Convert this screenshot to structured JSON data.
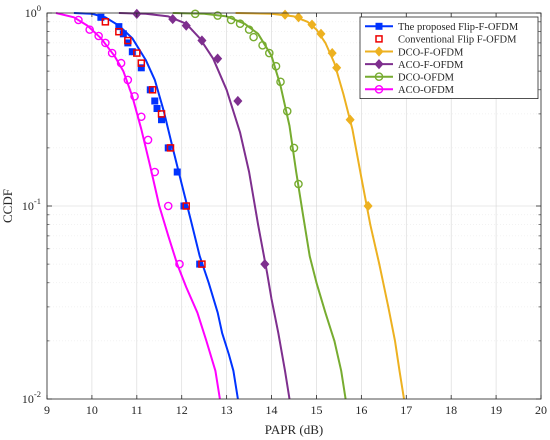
{
  "chart_data": {
    "type": "line",
    "title": "",
    "xlabel": "PAPR (dB)",
    "ylabel": "CCDF",
    "xlim": [
      9,
      20
    ],
    "ylim": [
      0.01,
      1
    ],
    "yscale": "log",
    "grid": true,
    "legend_position": "top-right",
    "x_ticks": [
      "9",
      "10",
      "11",
      "12",
      "13",
      "14",
      "15",
      "16",
      "17",
      "18",
      "19",
      "20"
    ],
    "y_ticks": [
      {
        "base": "10",
        "exp": "0"
      },
      {
        "base": "10",
        "exp": "-1"
      },
      {
        "base": "10",
        "exp": "-2"
      }
    ],
    "series": [
      {
        "name": "The proposed Flip-F-OFDM",
        "color": "#0033FF",
        "marker": "square-filled",
        "line": true,
        "points": [
          [
            9.6,
            1.0
          ],
          [
            10.0,
            0.99
          ],
          [
            10.3,
            0.95
          ],
          [
            10.6,
            0.86
          ],
          [
            10.9,
            0.74
          ],
          [
            11.2,
            0.57
          ],
          [
            11.4,
            0.45
          ],
          [
            11.6,
            0.31
          ],
          [
            11.8,
            0.2
          ],
          [
            12.0,
            0.13
          ],
          [
            12.2,
            0.085
          ],
          [
            12.4,
            0.055
          ],
          [
            12.6,
            0.04
          ],
          [
            12.8,
            0.028
          ],
          [
            12.9,
            0.022
          ],
          [
            13.05,
            0.017
          ],
          [
            13.15,
            0.014
          ],
          [
            13.25,
            0.01
          ]
        ],
        "markers": [
          [
            10.2,
            0.95
          ],
          [
            10.6,
            0.85
          ],
          [
            10.7,
            0.78
          ],
          [
            10.8,
            0.7
          ],
          [
            10.9,
            0.63
          ],
          [
            11.1,
            0.52
          ],
          [
            11.3,
            0.4
          ],
          [
            11.4,
            0.35
          ],
          [
            11.45,
            0.32
          ],
          [
            11.55,
            0.28
          ],
          [
            11.7,
            0.2
          ],
          [
            11.9,
            0.15
          ],
          [
            12.05,
            0.1
          ],
          [
            12.4,
            0.05
          ]
        ]
      },
      {
        "name": "Conventional Flip F-OFDM",
        "color": "#EE0000",
        "marker": "square-open",
        "line": false,
        "markers": [
          [
            10.3,
            0.9
          ],
          [
            10.6,
            0.8
          ],
          [
            10.8,
            0.72
          ],
          [
            11.0,
            0.62
          ],
          [
            11.1,
            0.55
          ],
          [
            11.35,
            0.4
          ],
          [
            11.55,
            0.3
          ],
          [
            11.75,
            0.2
          ],
          [
            12.1,
            0.1
          ],
          [
            12.45,
            0.05
          ]
        ]
      },
      {
        "name": "DCO-F-OFDM",
        "color": "#EDB120",
        "marker": "diamond",
        "line": true,
        "points": [
          [
            13.2,
            1.0
          ],
          [
            14.0,
            0.99
          ],
          [
            14.5,
            0.96
          ],
          [
            14.8,
            0.9
          ],
          [
            15.0,
            0.82
          ],
          [
            15.2,
            0.7
          ],
          [
            15.4,
            0.55
          ],
          [
            15.6,
            0.38
          ],
          [
            15.8,
            0.25
          ],
          [
            16.0,
            0.14
          ],
          [
            16.2,
            0.08
          ],
          [
            16.4,
            0.05
          ],
          [
            16.6,
            0.03
          ],
          [
            16.75,
            0.02
          ],
          [
            16.85,
            0.014
          ],
          [
            16.95,
            0.01
          ]
        ],
        "markers": [
          [
            14.3,
            0.98
          ],
          [
            14.6,
            0.95
          ],
          [
            14.9,
            0.87
          ],
          [
            15.1,
            0.78
          ],
          [
            15.35,
            0.62
          ],
          [
            15.45,
            0.52
          ],
          [
            15.75,
            0.28
          ],
          [
            16.15,
            0.1
          ]
        ]
      },
      {
        "name": "ACO-F-OFDM",
        "color": "#7E2F8E",
        "marker": "diamond",
        "line": true,
        "points": [
          [
            10.6,
            1.0
          ],
          [
            11.2,
            0.99
          ],
          [
            11.7,
            0.96
          ],
          [
            12.1,
            0.88
          ],
          [
            12.4,
            0.74
          ],
          [
            12.7,
            0.58
          ],
          [
            13.0,
            0.4
          ],
          [
            13.3,
            0.24
          ],
          [
            13.5,
            0.15
          ],
          [
            13.7,
            0.08
          ],
          [
            13.9,
            0.045
          ],
          [
            14.0,
            0.033
          ],
          [
            14.15,
            0.022
          ],
          [
            14.3,
            0.014
          ],
          [
            14.4,
            0.01
          ]
        ],
        "markers": [
          [
            11.0,
            0.99
          ],
          [
            11.8,
            0.93
          ],
          [
            12.1,
            0.86
          ],
          [
            12.45,
            0.72
          ],
          [
            12.8,
            0.58
          ],
          [
            13.25,
            0.35
          ],
          [
            13.85,
            0.05
          ]
        ]
      },
      {
        "name": "DCO-OFDM",
        "color": "#77AC30",
        "marker": "circle-open",
        "line": true,
        "points": [
          [
            11.8,
            1.0
          ],
          [
            12.5,
            0.99
          ],
          [
            13.0,
            0.96
          ],
          [
            13.4,
            0.88
          ],
          [
            13.7,
            0.78
          ],
          [
            14.0,
            0.6
          ],
          [
            14.2,
            0.42
          ],
          [
            14.4,
            0.26
          ],
          [
            14.55,
            0.15
          ],
          [
            14.7,
            0.09
          ],
          [
            14.85,
            0.055
          ],
          [
            15.0,
            0.04
          ],
          [
            15.2,
            0.028
          ],
          [
            15.4,
            0.02
          ],
          [
            15.55,
            0.014
          ],
          [
            15.65,
            0.01
          ]
        ],
        "markers": [
          [
            12.3,
            0.99
          ],
          [
            12.8,
            0.97
          ],
          [
            13.1,
            0.92
          ],
          [
            13.3,
            0.88
          ],
          [
            13.5,
            0.82
          ],
          [
            13.6,
            0.75
          ],
          [
            13.8,
            0.68
          ],
          [
            13.95,
            0.62
          ],
          [
            14.1,
            0.53
          ],
          [
            14.2,
            0.44
          ],
          [
            14.35,
            0.31
          ],
          [
            14.5,
            0.2
          ],
          [
            14.6,
            0.13
          ]
        ]
      },
      {
        "name": "ACO-OFDM",
        "color": "#FF00FF",
        "marker": "circle-open",
        "line": true,
        "points": [
          [
            9.2,
            1.0
          ],
          [
            9.6,
            0.95
          ],
          [
            9.9,
            0.86
          ],
          [
            10.2,
            0.74
          ],
          [
            10.5,
            0.6
          ],
          [
            10.7,
            0.5
          ],
          [
            10.9,
            0.37
          ],
          [
            11.1,
            0.25
          ],
          [
            11.3,
            0.16
          ],
          [
            11.5,
            0.1
          ],
          [
            11.7,
            0.07
          ],
          [
            11.9,
            0.05
          ],
          [
            12.1,
            0.038
          ],
          [
            12.35,
            0.028
          ],
          [
            12.55,
            0.02
          ],
          [
            12.75,
            0.014
          ],
          [
            12.85,
            0.01
          ]
        ],
        "markers": [
          [
            9.7,
            0.92
          ],
          [
            9.95,
            0.82
          ],
          [
            10.15,
            0.76
          ],
          [
            10.3,
            0.7
          ],
          [
            10.45,
            0.62
          ],
          [
            10.65,
            0.55
          ],
          [
            10.8,
            0.45
          ],
          [
            10.95,
            0.37
          ],
          [
            11.1,
            0.29
          ],
          [
            11.25,
            0.22
          ],
          [
            11.4,
            0.15
          ],
          [
            11.7,
            0.1
          ],
          [
            11.95,
            0.05
          ]
        ]
      }
    ]
  }
}
